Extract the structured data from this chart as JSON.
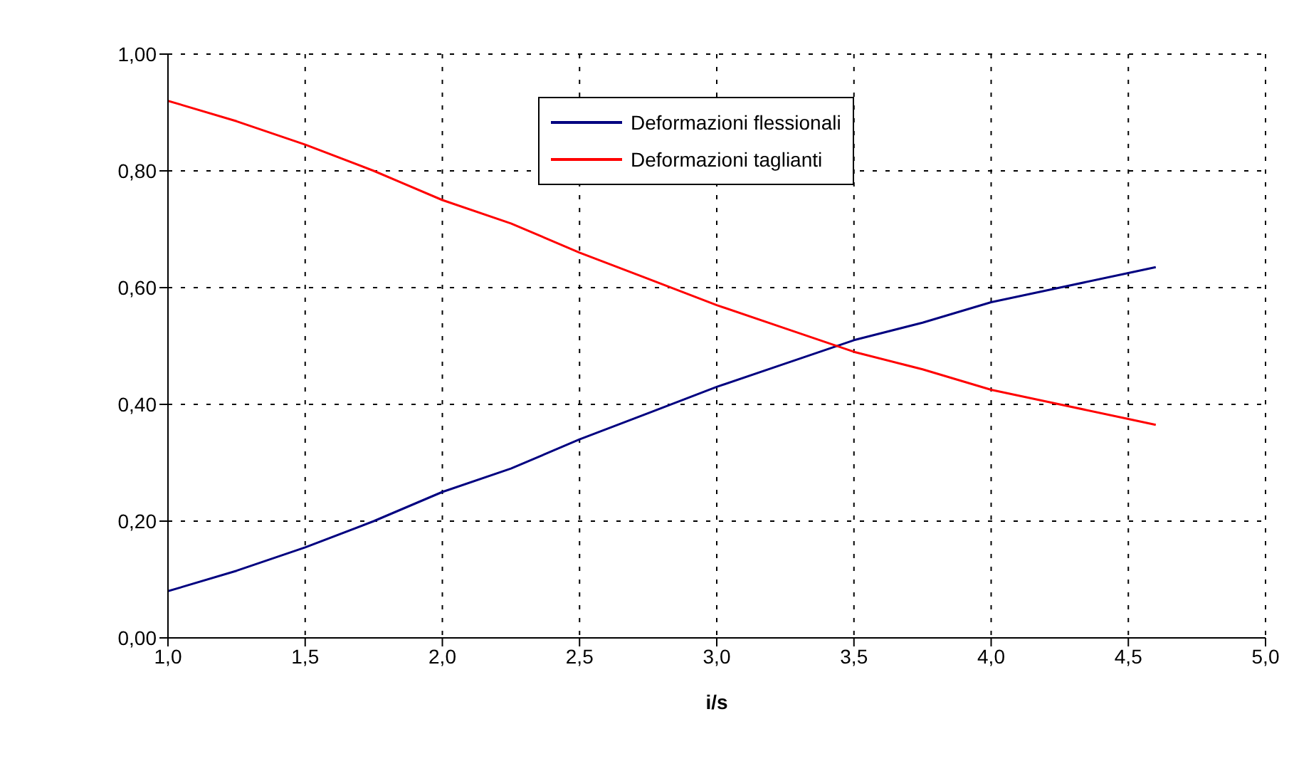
{
  "chart_data": {
    "type": "line",
    "xlabel": "i/s",
    "x": [
      1.0,
      1.25,
      1.5,
      1.75,
      2.0,
      2.25,
      2.5,
      2.75,
      3.0,
      3.25,
      3.5,
      3.75,
      4.0,
      4.25,
      4.5,
      4.6
    ],
    "series": [
      {
        "name": "Deformazioni flessionali",
        "color": "#000080",
        "values": [
          0.08,
          0.115,
          0.155,
          0.2,
          0.25,
          0.29,
          0.34,
          0.385,
          0.43,
          0.47,
          0.51,
          0.54,
          0.575,
          0.6,
          0.625,
          0.635
        ]
      },
      {
        "name": "Deformazioni taglianti",
        "color": "#ff0000",
        "values": [
          0.92,
          0.885,
          0.845,
          0.8,
          0.75,
          0.71,
          0.66,
          0.615,
          0.57,
          0.53,
          0.49,
          0.46,
          0.425,
          0.4,
          0.375,
          0.365
        ]
      }
    ],
    "xlim": [
      1,
      5
    ],
    "xticks": [
      {
        "value": 1,
        "label": "1,0"
      },
      {
        "value": 1.5,
        "label": "1,5"
      },
      {
        "value": 2,
        "label": "2,0"
      },
      {
        "value": 2.5,
        "label": "2,5"
      },
      {
        "value": 3,
        "label": "3,0"
      },
      {
        "value": 3.5,
        "label": "3,5"
      },
      {
        "value": 4,
        "label": "4,0"
      },
      {
        "value": 4.5,
        "label": "4,5"
      },
      {
        "value": 5,
        "label": "5,0"
      }
    ],
    "ylim": [
      0,
      1
    ],
    "yticks": [
      {
        "value": 0,
        "label": "0,00"
      },
      {
        "value": 0.2,
        "label": "0,20"
      },
      {
        "value": 0.4,
        "label": "0,40"
      },
      {
        "value": 0.6,
        "label": "0,60"
      },
      {
        "value": 0.8,
        "label": "0,80"
      },
      {
        "value": 1,
        "label": "1,00"
      }
    ],
    "grid": true,
    "legend": "top right",
    "marker": "none",
    "line_style": "solid"
  }
}
